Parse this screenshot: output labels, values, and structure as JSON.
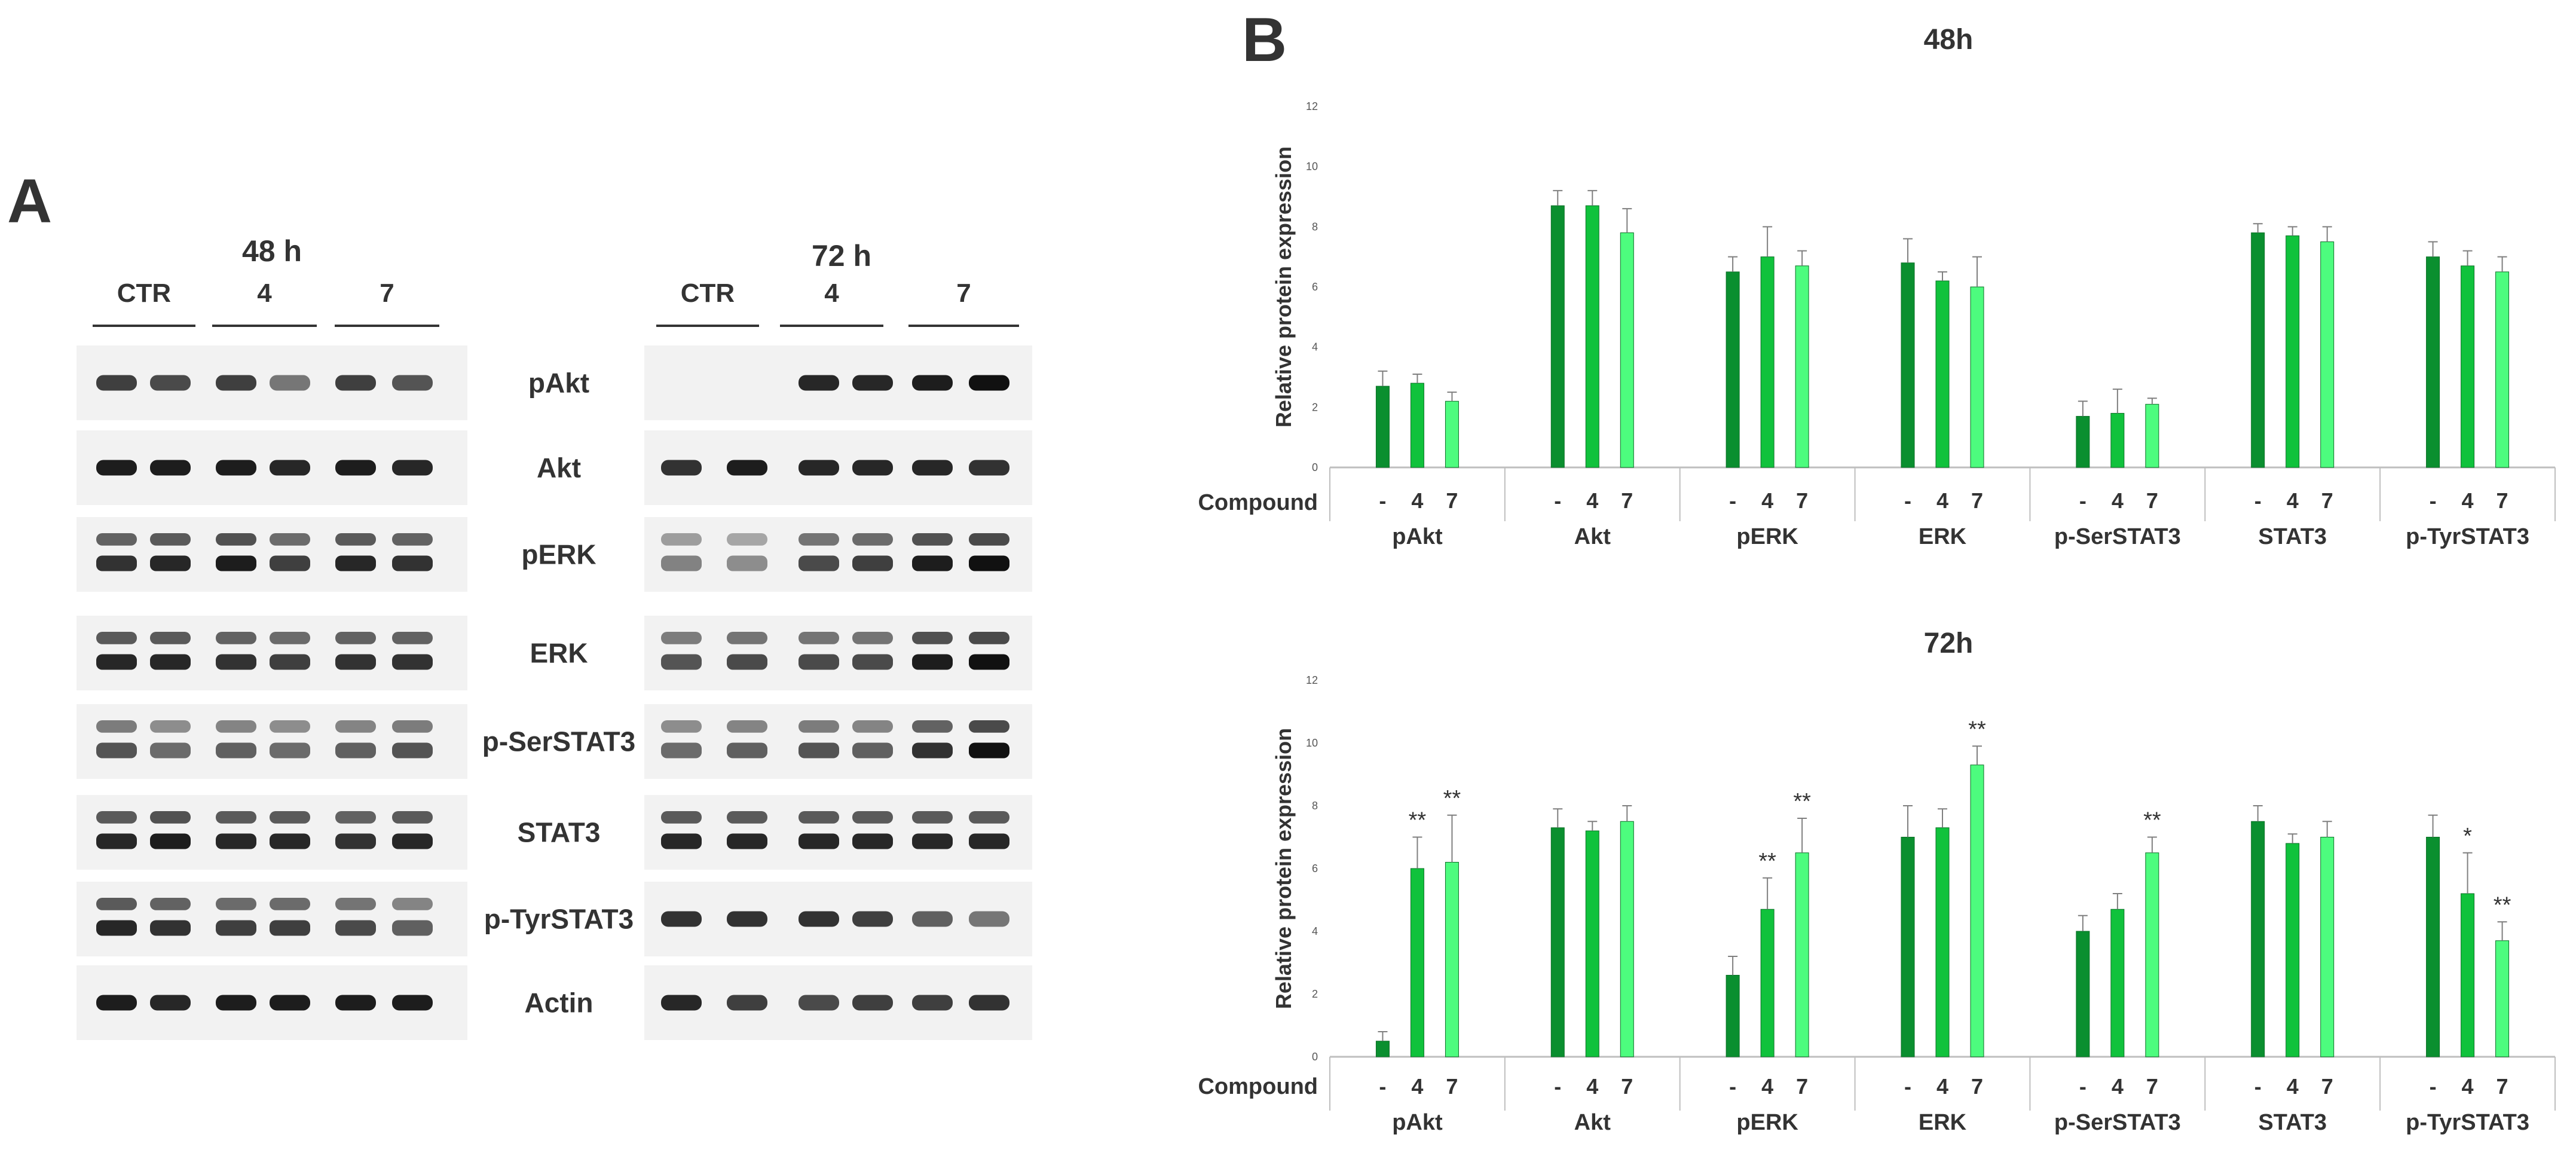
{
  "panel_a": {
    "label": "A",
    "blots": [
      {
        "title": "48 h",
        "groups": [
          "CTR",
          "4",
          "7"
        ],
        "rows": [
          {
            "label": "pAkt",
            "intensity": [
              0.8,
              0.75,
              0.8,
              0.55,
              0.8,
              0.7
            ],
            "band_shape": "single"
          },
          {
            "label": "Akt",
            "intensity": [
              0.95,
              0.95,
              0.95,
              0.9,
              0.95,
              0.9
            ],
            "band_shape": "single"
          },
          {
            "label": "pERK",
            "intensity": [
              0.85,
              0.9,
              0.95,
              0.8,
              0.9,
              0.85
            ],
            "band_shape": "double"
          },
          {
            "label": "ERK",
            "intensity": [
              0.9,
              0.9,
              0.85,
              0.8,
              0.85,
              0.85
            ],
            "band_shape": "double"
          },
          {
            "label": "p-SerSTAT3",
            "intensity": [
              0.7,
              0.6,
              0.65,
              0.6,
              0.65,
              0.7
            ],
            "band_shape": "double"
          },
          {
            "label": "STAT3",
            "intensity": [
              0.9,
              0.95,
              0.9,
              0.9,
              0.85,
              0.9
            ],
            "band_shape": "double"
          },
          {
            "label": "p-TyrSTAT3",
            "intensity": [
              0.9,
              0.85,
              0.8,
              0.8,
              0.75,
              0.65
            ],
            "band_shape": "double"
          },
          {
            "label": "Actin",
            "intensity": [
              0.95,
              0.9,
              0.95,
              0.95,
              0.95,
              0.95
            ],
            "band_shape": "single"
          }
        ]
      },
      {
        "title": "72 h",
        "groups": [
          "CTR",
          "4",
          "7"
        ],
        "rows": [
          {
            "label": "pAkt",
            "intensity": [
              0.0,
              0.0,
              0.9,
              0.9,
              0.95,
              1.0
            ],
            "band_shape": "single"
          },
          {
            "label": "Akt",
            "intensity": [
              0.85,
              0.95,
              0.9,
              0.9,
              0.9,
              0.85
            ],
            "band_shape": "single"
          },
          {
            "label": "pERK",
            "intensity": [
              0.5,
              0.45,
              0.75,
              0.8,
              0.95,
              1.0
            ],
            "band_shape": "double"
          },
          {
            "label": "ERK",
            "intensity": [
              0.7,
              0.75,
              0.75,
              0.75,
              0.95,
              1.0
            ],
            "band_shape": "double"
          },
          {
            "label": "p-SerSTAT3",
            "intensity": [
              0.6,
              0.65,
              0.7,
              0.65,
              0.85,
              1.0
            ],
            "band_shape": "double"
          },
          {
            "label": "STAT3",
            "intensity": [
              0.9,
              0.9,
              0.9,
              0.9,
              0.9,
              0.9
            ],
            "band_shape": "double"
          },
          {
            "label": "p-TyrSTAT3",
            "intensity": [
              0.85,
              0.85,
              0.85,
              0.8,
              0.65,
              0.55
            ],
            "band_shape": "single"
          },
          {
            "label": "Actin",
            "intensity": [
              0.9,
              0.8,
              0.75,
              0.8,
              0.8,
              0.85
            ],
            "band_shape": "single"
          }
        ]
      }
    ]
  },
  "panel_b": {
    "label": "B",
    "compound_label": "Compound",
    "compound_ticks": [
      "-",
      "4",
      "7"
    ]
  },
  "colors": {
    "series": [
      "#0a8f2f",
      "#10c23c",
      "#4dfc7e"
    ],
    "grid": "#d9d9d9",
    "axis": "#bfbfbf",
    "text": "#333333",
    "error": "#7f7f7f"
  },
  "chart_data": [
    {
      "type": "bar",
      "title": "48h",
      "ylabel": "Relative protein expression",
      "xlabel": "Compound",
      "ylim": [
        0,
        12
      ],
      "yticks": [
        0,
        2,
        4,
        6,
        8,
        10,
        12
      ],
      "grid": true,
      "categories": [
        "pAkt",
        "Akt",
        "pERK",
        "ERK",
        "p-SerSTAT3",
        "STAT3",
        "p-TyrSTAT3"
      ],
      "series": [
        {
          "compound": "-",
          "values": [
            2.7,
            8.7,
            6.5,
            6.8,
            1.7,
            7.8,
            7.0
          ],
          "errors": [
            0.5,
            0.5,
            0.5,
            0.8,
            0.5,
            0.3,
            0.5
          ],
          "sig": [
            "",
            "",
            "",
            "",
            "",
            "",
            ""
          ]
        },
        {
          "compound": "4",
          "values": [
            2.8,
            8.7,
            7.0,
            6.2,
            1.8,
            7.7,
            6.7
          ],
          "errors": [
            0.3,
            0.5,
            1.0,
            0.3,
            0.8,
            0.3,
            0.5
          ],
          "sig": [
            "",
            "",
            "",
            "",
            "",
            "",
            ""
          ]
        },
        {
          "compound": "7",
          "values": [
            2.2,
            7.8,
            6.7,
            6.0,
            2.1,
            7.5,
            6.5
          ],
          "errors": [
            0.3,
            0.8,
            0.5,
            1.0,
            0.2,
            0.5,
            0.5
          ],
          "sig": [
            "",
            "",
            "",
            "",
            "",
            "",
            ""
          ]
        }
      ]
    },
    {
      "type": "bar",
      "title": "72h",
      "ylabel": "Relative protein expression",
      "xlabel": "Compound",
      "ylim": [
        0,
        12
      ],
      "yticks": [
        0,
        2,
        4,
        6,
        8,
        10,
        12
      ],
      "grid": true,
      "categories": [
        "pAkt",
        "Akt",
        "pERK",
        "ERK",
        "p-SerSTAT3",
        "STAT3",
        "p-TyrSTAT3"
      ],
      "series": [
        {
          "compound": "-",
          "values": [
            0.5,
            7.3,
            2.6,
            7.0,
            4.0,
            7.5,
            7.0
          ],
          "errors": [
            0.3,
            0.6,
            0.6,
            1.0,
            0.5,
            0.5,
            0.7
          ],
          "sig": [
            "",
            "",
            "",
            "",
            "",
            "",
            ""
          ]
        },
        {
          "compound": "4",
          "values": [
            6.0,
            7.2,
            4.7,
            7.3,
            4.7,
            6.8,
            5.2
          ],
          "errors": [
            1.0,
            0.3,
            1.0,
            0.6,
            0.5,
            0.3,
            1.3
          ],
          "sig": [
            "**",
            "",
            "**",
            "",
            "",
            "",
            "*"
          ]
        },
        {
          "compound": "7",
          "values": [
            6.2,
            7.5,
            6.5,
            9.3,
            6.5,
            7.0,
            3.7
          ],
          "errors": [
            1.5,
            0.5,
            1.1,
            0.6,
            0.5,
            0.5,
            0.6
          ],
          "sig": [
            "**",
            "",
            "**",
            "**",
            "**",
            "",
            "**"
          ]
        }
      ]
    }
  ]
}
